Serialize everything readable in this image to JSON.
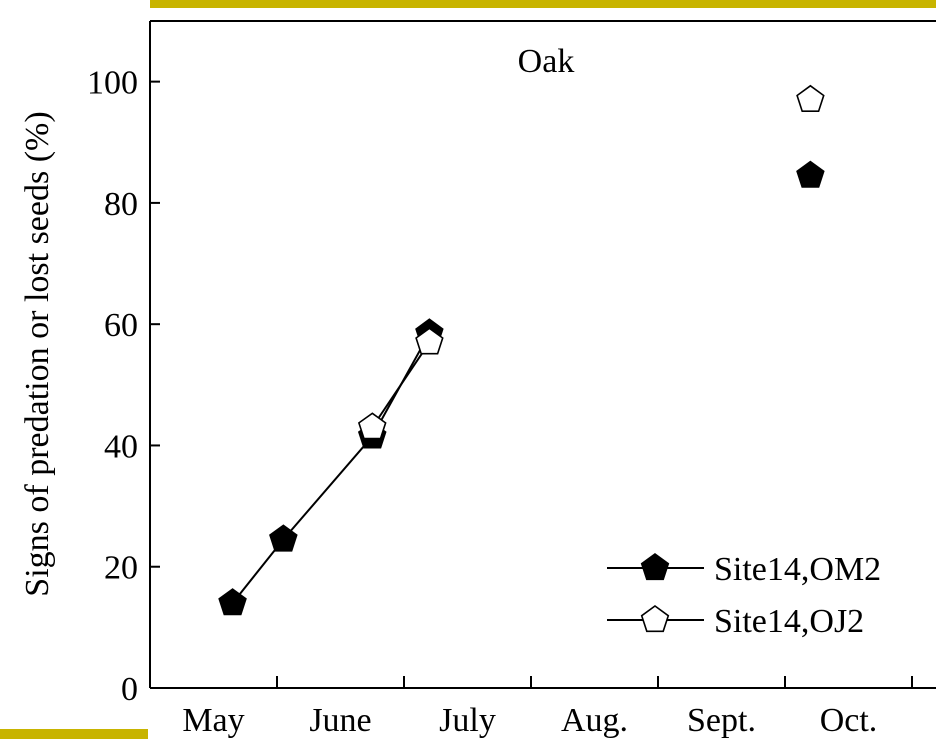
{
  "colors": {
    "accent_bar": "#c8b400",
    "axis": "#000000",
    "filled_marker": "#000000",
    "open_marker_fill": "#ffffff",
    "background": "#ffffff"
  },
  "chart_data": {
    "type": "line",
    "title": "Oak",
    "xlabel": "",
    "ylabel": "Signs of predation or lost seeds (%)",
    "categories": [
      "May",
      "June",
      "July",
      "Aug.",
      "Sept.",
      "Oct."
    ],
    "x_range": [
      0,
      6
    ],
    "ylim": [
      0,
      110
    ],
    "yticks": [
      0,
      20,
      40,
      60,
      80,
      100
    ],
    "grid": false,
    "legend_position": "bottom-right",
    "series": [
      {
        "name": "Site14,OM2",
        "marker": "filled-pentagon",
        "connected": true,
        "x": [
          0.65,
          1.05,
          1.75,
          2.2
        ],
        "y": [
          14,
          24.5,
          41.5,
          58.5
        ],
        "isolated": [
          {
            "x": 5.2,
            "y": 84.5
          }
        ]
      },
      {
        "name": "Site14,OJ2",
        "marker": "open-pentagon",
        "connected": true,
        "x": [
          1.75,
          2.2
        ],
        "y": [
          43,
          57
        ],
        "isolated": [
          {
            "x": 5.2,
            "y": 97
          }
        ]
      }
    ]
  }
}
